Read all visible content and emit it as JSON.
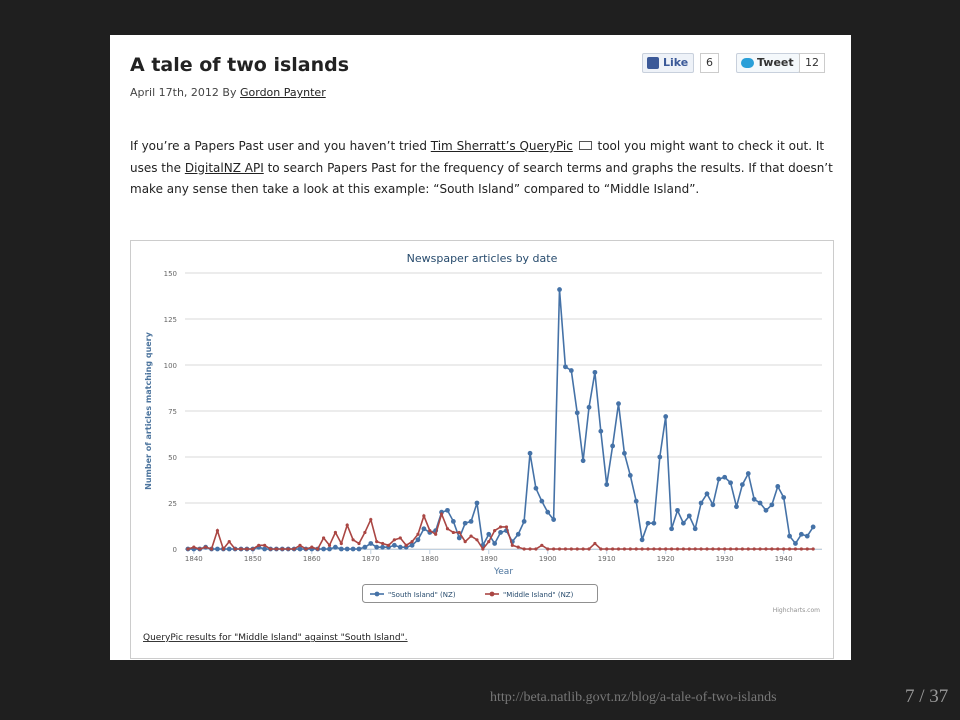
{
  "post": {
    "title": "A tale of two islands",
    "date": "April 17th, 2012",
    "by": "By",
    "author": "Gordon Paynter",
    "like": "Like",
    "like_count": "6",
    "tweet": "Tweet",
    "tweet_count": "12",
    "paragraph": [
      "If you’re a Papers Past user and you haven’t tried ",
      "Tim Sherratt’s QueryPic",
      " tool you might want to check it out. It uses the ",
      "DigitalNZ API",
      " to search Papers Past for the frequency of search terms and graphs the results. If that doesn’t make any sense then take a look at this example: “South Island” compared to “Middle Island”."
    ],
    "caption": "QueryPic results for \"Middle Island\" against \"South Island\"."
  },
  "chart_data": {
    "type": "line",
    "title": "Newspaper articles by date",
    "x_label": "Year",
    "y_label": "Number of articles matching query",
    "credit": "Highcharts.com",
    "x": [
      1839,
      1840,
      1841,
      1842,
      1843,
      1844,
      1845,
      1846,
      1847,
      1848,
      1849,
      1850,
      1851,
      1852,
      1853,
      1854,
      1855,
      1856,
      1857,
      1858,
      1859,
      1860,
      1861,
      1862,
      1863,
      1864,
      1865,
      1866,
      1867,
      1868,
      1869,
      1870,
      1871,
      1872,
      1873,
      1874,
      1875,
      1876,
      1877,
      1878,
      1879,
      1880,
      1881,
      1882,
      1883,
      1884,
      1885,
      1886,
      1887,
      1888,
      1889,
      1890,
      1891,
      1892,
      1893,
      1894,
      1895,
      1896,
      1897,
      1898,
      1899,
      1900,
      1901,
      1902,
      1903,
      1904,
      1905,
      1906,
      1907,
      1908,
      1909,
      1910,
      1911,
      1912,
      1913,
      1914,
      1915,
      1916,
      1917,
      1918,
      1919,
      1920,
      1921,
      1922,
      1923,
      1924,
      1925,
      1926,
      1927,
      1928,
      1929,
      1930,
      1931,
      1932,
      1933,
      1934,
      1935,
      1936,
      1937,
      1938,
      1939,
      1940,
      1941,
      1942,
      1943,
      1944,
      1945
    ],
    "series": [
      {
        "name": "\"South Island\" (NZ)",
        "color": "#4572a7",
        "values": [
          0,
          0,
          0,
          1,
          0,
          0,
          0,
          0,
          0,
          0,
          0,
          0,
          1,
          0,
          0,
          0,
          0,
          0,
          0,
          0,
          0,
          0,
          0,
          0,
          0,
          1,
          0,
          0,
          0,
          0,
          1,
          3,
          1,
          1,
          1,
          2,
          1,
          1,
          2,
          5,
          11,
          9,
          10,
          20,
          21,
          15,
          6,
          14,
          15,
          25,
          2,
          8,
          3,
          9,
          10,
          4,
          8,
          15,
          52,
          33,
          26,
          20,
          16,
          141,
          99,
          97,
          74,
          48,
          77,
          96,
          64,
          35,
          56,
          79,
          52,
          40,
          26,
          5,
          14,
          14,
          50,
          72,
          11,
          21,
          14,
          18,
          11,
          25,
          30,
          24,
          38,
          39,
          36,
          23,
          35,
          41,
          27,
          25,
          21,
          24,
          34,
          28,
          7,
          3,
          8,
          7,
          12
        ]
      },
      {
        "name": "\"Middle Island\" (NZ)",
        "color": "#aa4643",
        "values": [
          0,
          1,
          0,
          1,
          0,
          10,
          0,
          4,
          0,
          0,
          0,
          0,
          2,
          2,
          0,
          0,
          0,
          0,
          0,
          2,
          0,
          1,
          0,
          6,
          2,
          9,
          3,
          13,
          5,
          3,
          9,
          16,
          4,
          3,
          2,
          5,
          6,
          2,
          4,
          8,
          18,
          10,
          8,
          19,
          11,
          9,
          9,
          4,
          7,
          5,
          0,
          4,
          10,
          12,
          12,
          2,
          1,
          0,
          0,
          0,
          2,
          0,
          0,
          0,
          0,
          0,
          0,
          0,
          0,
          3,
          0,
          0,
          0,
          0,
          0,
          0,
          0,
          0,
          0,
          0,
          0,
          0,
          0,
          0,
          0,
          0,
          0,
          0,
          0,
          0,
          0,
          0,
          0,
          0,
          0,
          0,
          0,
          0,
          0,
          0,
          0,
          0,
          0,
          0,
          0,
          0,
          0
        ]
      }
    ],
    "xlim": [
      1838.5,
      1946.5
    ],
    "xticks": [
      1840,
      1850,
      1860,
      1870,
      1880,
      1890,
      1900,
      1910,
      1920,
      1930,
      1940
    ],
    "ylim": [
      0,
      150
    ],
    "yticks": [
      0,
      25,
      50,
      75,
      100,
      125,
      150
    ],
    "grid": true
  },
  "footer": {
    "url": "http://beta.natlib.govt.nz/blog/a-tale-of-two-islands",
    "page": "7 / 37"
  }
}
